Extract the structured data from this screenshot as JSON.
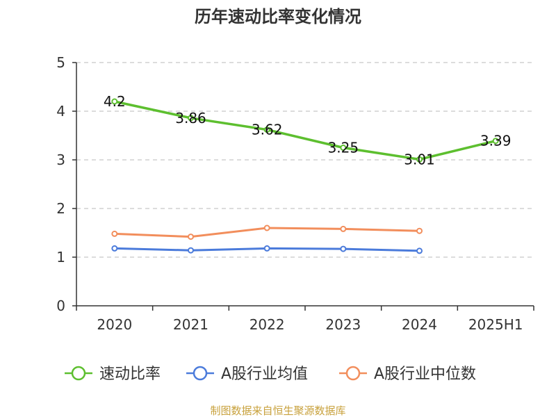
{
  "chart_data": {
    "type": "line",
    "title": "历年速动比率变化情况",
    "categories": [
      "2020",
      "2021",
      "2022",
      "2023",
      "2024",
      "2025H1"
    ],
    "ylim": [
      0,
      5
    ],
    "yticks": [
      "0",
      "1",
      "2",
      "3",
      "4",
      "5"
    ],
    "grid": true,
    "legend_position": "bottom",
    "series": [
      {
        "name": "速动比率",
        "color": "#5dbf2f",
        "values": [
          4.2,
          3.86,
          3.62,
          3.25,
          3.01,
          3.39
        ],
        "labels": [
          "4.2",
          "3.86",
          "3.62",
          "3.25",
          "3.01",
          "3.39"
        ]
      },
      {
        "name": "A股行业均值",
        "color": "#4b7bdb",
        "values": [
          1.18,
          1.14,
          1.18,
          1.17,
          1.13,
          null
        ]
      },
      {
        "name": "A股行业中位数",
        "color": "#f28e5c",
        "values": [
          1.48,
          1.42,
          1.6,
          1.58,
          1.54,
          null
        ]
      }
    ]
  },
  "footer": {
    "source": "制图数据来自恒生聚源数据库"
  }
}
